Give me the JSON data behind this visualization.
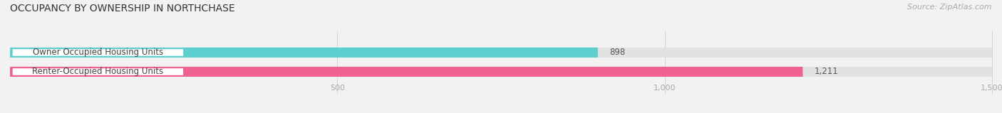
{
  "title": "OCCUPANCY BY OWNERSHIP IN NORTHCHASE",
  "source": "Source: ZipAtlas.com",
  "categories": [
    "Owner Occupied Housing Units",
    "Renter-Occupied Housing Units"
  ],
  "values": [
    898,
    1211
  ],
  "bar_colors": [
    "#5ecfcf",
    "#f06090"
  ],
  "background_color": "#f2f2f2",
  "bar_bg_color": "#e2e2e2",
  "xlim": [
    0,
    1500
  ],
  "xticks": [
    500,
    1000,
    1500
  ],
  "xtick_labels": [
    "500",
    "1,000",
    "1,500"
  ],
  "value_labels": [
    "898",
    "1,211"
  ],
  "title_fontsize": 10,
  "source_fontsize": 8,
  "label_fontsize": 8.5,
  "value_fontsize": 8.5,
  "figsize": [
    14.06,
    1.59
  ],
  "dpi": 100
}
